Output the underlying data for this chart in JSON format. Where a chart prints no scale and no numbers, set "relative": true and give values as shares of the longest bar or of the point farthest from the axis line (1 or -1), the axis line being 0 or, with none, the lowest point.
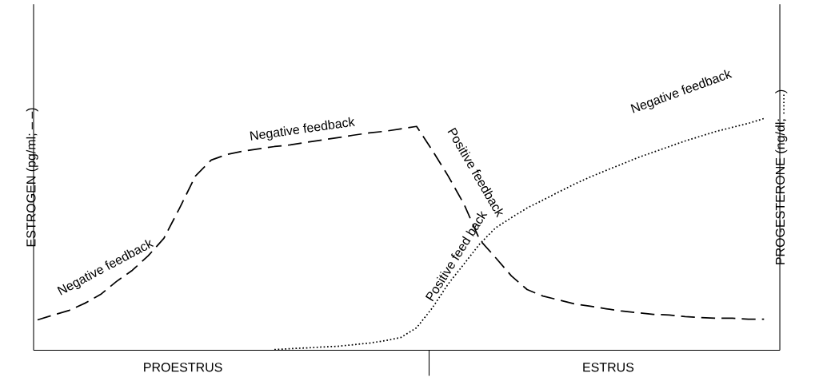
{
  "chart_data": {
    "type": "line",
    "relative": true,
    "ylabel": "ESTROGEN (pg/ml; – –)",
    "y2label": "PROGESTERONE (ng/dl; ......)",
    "categories": [
      null,
      null,
      null,
      null,
      null,
      null,
      null,
      null,
      null,
      null,
      null,
      null,
      null,
      null,
      null,
      null,
      null,
      null,
      null,
      null,
      null,
      null,
      null,
      null,
      null,
      null,
      null,
      null,
      null,
      null,
      null,
      null,
      null,
      null,
      null,
      null,
      null,
      null,
      null,
      null,
      null,
      null,
      null,
      null,
      null,
      null,
      null
    ],
    "series": [
      {
        "color": "#000000",
        "line_style": "dashed",
        "values": [
          0.131,
          0.152,
          0.172,
          0.203,
          0.241,
          0.297,
          0.345,
          0.407,
          0.483,
          0.614,
          0.752,
          0.821,
          0.845,
          0.859,
          0.869,
          0.879,
          0.886,
          0.897,
          0.907,
          0.917,
          0.928,
          0.938,
          0.945,
          0.955,
          0.966,
          0.862,
          0.752,
          0.631,
          0.476,
          0.4,
          0.321,
          0.262,
          0.234,
          0.217,
          0.2,
          0.19,
          0.179,
          0.169,
          0.162,
          0.155,
          0.152,
          0.145,
          0.141,
          0.138,
          0.138,
          0.134,
          0.134
        ]
      },
      {
        "color": "#000000",
        "line_style": "dotted",
        "values": [
          null,
          null,
          null,
          null,
          null,
          null,
          null,
          null,
          null,
          null,
          null,
          null,
          null,
          null,
          null,
          0.003,
          0.007,
          0.01,
          0.014,
          0.017,
          0.024,
          0.031,
          0.041,
          0.055,
          0.097,
          0.183,
          0.286,
          0.372,
          0.459,
          0.528,
          0.572,
          0.614,
          0.648,
          0.683,
          0.717,
          0.748,
          0.776,
          0.803,
          0.831,
          0.855,
          0.879,
          0.903,
          0.924,
          0.945,
          0.962,
          0.979,
          1
        ]
      }
    ],
    "annotations": [
      "Negative feedback",
      "Negative feedback",
      "Positive feedback",
      "Positive feed back",
      "Negative feedback",
      "PROESTRUS",
      "ESTRUS"
    ]
  }
}
